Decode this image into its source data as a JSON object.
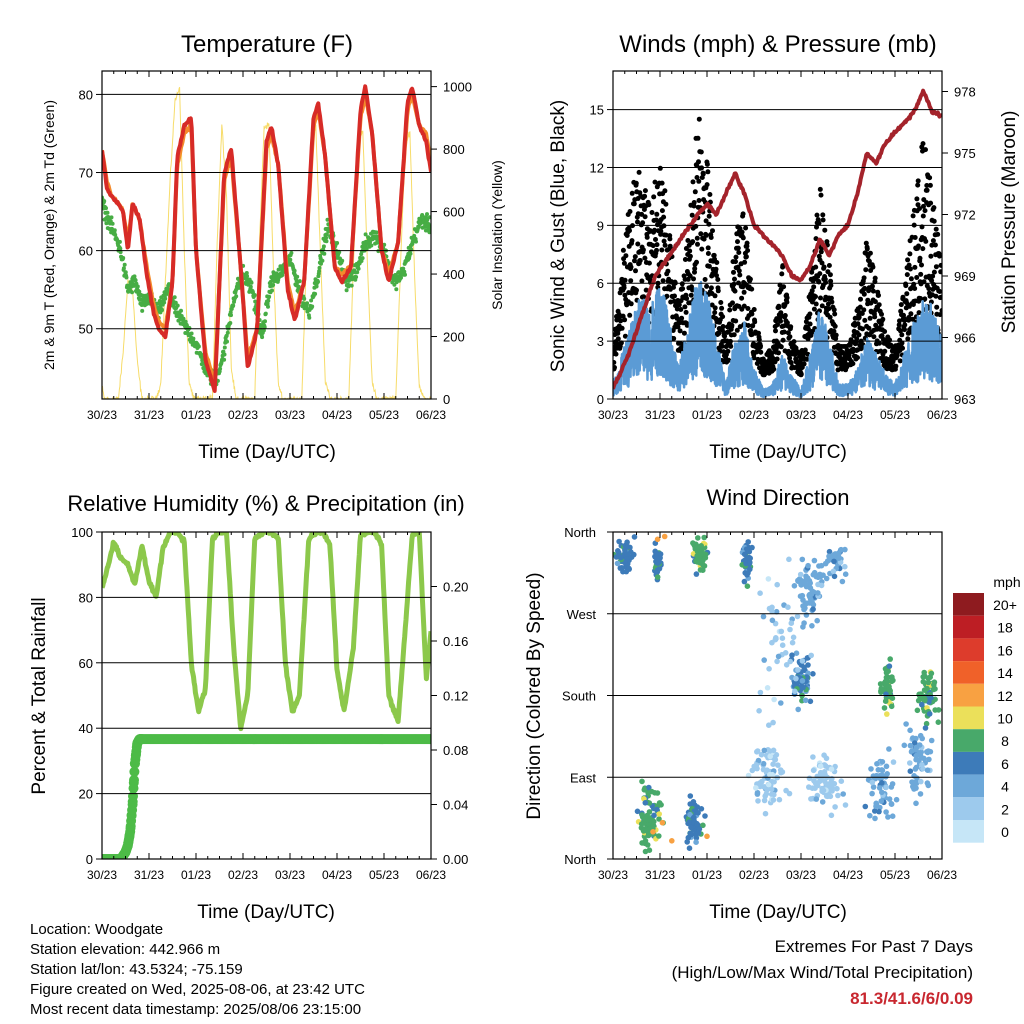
{
  "x_ticks": [
    "30/23",
    "31/23",
    "01/23",
    "02/23",
    "03/23",
    "04/23",
    "05/23",
    "06/23"
  ],
  "colors": {
    "temp2m": "#d72b27",
    "temp9m": "#f48a2c",
    "dewpoint": "#47ad44",
    "solar": "#f7dc6a",
    "wind": "#5b9bd5",
    "gust": "#000000",
    "pressure": "#a4232b",
    "rh": "#8cc84b",
    "precip": "#4dbb47",
    "extremes": "#c8272f"
  },
  "wind_speed_legend": {
    "title": "mph",
    "labels": [
      "20+",
      "18",
      "16",
      "14",
      "12",
      "10",
      "8",
      "6",
      "4",
      "2",
      "0"
    ],
    "colors": [
      "#8e1b1f",
      "#bd1e24",
      "#dd3c2c",
      "#f06129",
      "#f8a142",
      "#ebe05a",
      "#48a96a",
      "#3d7bb9",
      "#6da8d9",
      "#9dcaed",
      "#c6e6f7"
    ]
  },
  "chart_data": [
    {
      "type": "line",
      "title": "Temperature (F)",
      "xlabel": "Time (Day/UTC)",
      "ylabel": "2m & 9m T (Red, Orange) & 2m Td (Green)",
      "y2label": "Solar Insolation (Yellow)",
      "x_range": [
        0,
        7
      ],
      "ylim": [
        41,
        83
      ],
      "y_ticks": [
        50,
        60,
        70,
        80
      ],
      "y2lim": [
        0,
        1050
      ],
      "y2_ticks": [
        0,
        200,
        400,
        600,
        800,
        1000
      ],
      "series": [
        {
          "key": "temp2m",
          "x": [
            0,
            0.1,
            0.2,
            0.35,
            0.45,
            0.55,
            0.65,
            0.8,
            0.95,
            1.1,
            1.2,
            1.35,
            1.5,
            1.6,
            1.75,
            1.9,
            2.0,
            2.2,
            2.4,
            2.5,
            2.6,
            2.75,
            2.95,
            3.1,
            3.3,
            3.5,
            3.6,
            3.75,
            3.95,
            4.1,
            4.3,
            4.5,
            4.6,
            4.75,
            4.95,
            5.1,
            5.3,
            5.5,
            5.6,
            5.75,
            5.95,
            6.1,
            6.3,
            6.5,
            6.6,
            6.75,
            6.9,
            7.0
          ],
          "y": [
            73,
            68,
            67,
            66,
            65,
            60,
            66,
            64,
            57,
            52,
            50,
            49,
            56,
            72,
            76,
            77,
            60,
            46,
            42,
            56,
            70,
            73,
            58,
            45,
            50,
            74,
            76,
            71,
            55,
            51,
            56,
            77,
            79,
            72,
            58,
            56,
            58,
            78,
            81,
            75,
            60,
            56,
            61,
            79,
            81,
            76,
            74,
            70
          ]
        },
        {
          "key": "temp9m",
          "x": [
            0,
            0.1,
            0.2,
            0.35,
            0.45,
            0.55,
            0.65,
            0.8,
            0.95,
            1.1,
            1.2,
            1.35,
            1.5,
            1.6,
            1.75,
            1.9,
            2.0,
            2.2,
            2.4,
            2.5,
            2.6,
            2.75,
            2.95,
            3.1,
            3.3,
            3.5,
            3.6,
            3.75,
            3.95,
            4.1,
            4.3,
            4.5,
            4.6,
            4.75,
            4.95,
            5.1,
            5.3,
            5.5,
            5.6,
            5.75,
            5.95,
            6.1,
            6.3,
            6.5,
            6.6,
            6.75,
            6.9,
            7.0
          ],
          "y": [
            73,
            69,
            67,
            66,
            65,
            61,
            66,
            64,
            58,
            53,
            51,
            50,
            56,
            71,
            75,
            76,
            60,
            47,
            43,
            56,
            69,
            72,
            58,
            46,
            50,
            73,
            75,
            71,
            56,
            52,
            56,
            76,
            78,
            72,
            58,
            57,
            58,
            77,
            80,
            75,
            60,
            57,
            61,
            78,
            80,
            76,
            75,
            71
          ]
        },
        {
          "key": "dewpoint",
          "x": [
            0,
            0.2,
            0.4,
            0.55,
            0.7,
            0.85,
            1.0,
            1.2,
            1.4,
            1.6,
            1.8,
            2.0,
            2.2,
            2.4,
            2.6,
            2.8,
            3.0,
            3.2,
            3.4,
            3.6,
            3.8,
            4.0,
            4.2,
            4.4,
            4.6,
            4.8,
            5.0,
            5.2,
            5.4,
            5.6,
            5.8,
            6.0,
            6.2,
            6.4,
            6.6,
            6.8,
            7.0
          ],
          "y": [
            66,
            63,
            60,
            55,
            56,
            53,
            54,
            52,
            55,
            52,
            50,
            48,
            45,
            43,
            47,
            54,
            57,
            55,
            49,
            56,
            57,
            59,
            55,
            52,
            57,
            63,
            60,
            56,
            57,
            61,
            62,
            60,
            56,
            57,
            61,
            64,
            63
          ]
        },
        {
          "key": "solar",
          "axis": "y2",
          "x": [
            0,
            0.05,
            0.15,
            0.25,
            0.35,
            0.45,
            0.55,
            0.65,
            0.75,
            0.85,
            0.95,
            1.05,
            1.15,
            1.25,
            1.35,
            1.45,
            1.55,
            1.65,
            1.75,
            1.85,
            1.95,
            2.05,
            2.15,
            2.25,
            2.35,
            2.45,
            2.55,
            2.65,
            2.75,
            2.85,
            2.95,
            3.05,
            3.15,
            3.25,
            3.35,
            3.45,
            3.55,
            3.65,
            3.75,
            3.85,
            3.95,
            4.05,
            4.15,
            4.25,
            4.35,
            4.45,
            4.55,
            4.65,
            4.75,
            4.85,
            4.95,
            5.05,
            5.15,
            5.25,
            5.35,
            5.45,
            5.55,
            5.65,
            5.75,
            5.85,
            5.95,
            6.05,
            6.15,
            6.25,
            6.35,
            6.45,
            6.55,
            6.65,
            6.75,
            6.85,
            6.95,
            7.0
          ],
          "y": [
            40,
            0,
            0,
            0,
            0,
            150,
            380,
            350,
            120,
            0,
            0,
            0,
            0,
            50,
            380,
            700,
            950,
            1000,
            480,
            60,
            0,
            0,
            0,
            0,
            0,
            500,
            880,
            650,
            100,
            0,
            0,
            0,
            0,
            0,
            500,
            870,
            880,
            400,
            50,
            0,
            0,
            0,
            0,
            0,
            450,
            850,
            870,
            450,
            60,
            0,
            0,
            0,
            0,
            0,
            430,
            840,
            860,
            420,
            50,
            0,
            0,
            0,
            0,
            0,
            420,
            820,
            850,
            400,
            40,
            0,
            0,
            0
          ]
        }
      ]
    },
    {
      "type": "line",
      "title": "Winds (mph) & Pressure (mb)",
      "xlabel": "Time (Day/UTC)",
      "ylabel": "Sonic Wind & Gust (Blue, Black)",
      "y2label": "Station Pressure (Maroon)",
      "x_range": [
        0,
        7
      ],
      "ylim": [
        0,
        17
      ],
      "y_ticks": [
        0,
        3,
        6,
        9,
        12,
        15
      ],
      "y2lim": [
        963,
        979
      ],
      "y2_ticks": [
        963,
        966,
        969,
        972,
        975,
        978
      ],
      "series": [
        {
          "key": "wind",
          "x": [
            0,
            0.2,
            0.4,
            0.6,
            0.8,
            1.0,
            1.2,
            1.4,
            1.6,
            1.8,
            2.0,
            2.2,
            2.4,
            2.6,
            2.8,
            3.0,
            3.2,
            3.4,
            3.6,
            3.8,
            4.0,
            4.2,
            4.4,
            4.6,
            4.8,
            5.0,
            5.2,
            5.4,
            5.6,
            5.8,
            6.0,
            6.2,
            6.4,
            6.6,
            6.8,
            7.0
          ],
          "y": [
            0.5,
            1.5,
            2.5,
            3.5,
            3.0,
            4.0,
            2.5,
            1.0,
            2.5,
            4.0,
            3.5,
            2.0,
            0.5,
            2.0,
            2.5,
            1.0,
            0.3,
            0.5,
            1.5,
            0.8,
            0.3,
            1.5,
            3.0,
            2.0,
            0.5,
            0.5,
            1.0,
            2.0,
            1.5,
            0.8,
            0.5,
            1.5,
            2.5,
            3.5,
            3.0,
            2.0
          ]
        },
        {
          "key": "gust",
          "x": [
            0,
            0.2,
            0.4,
            0.6,
            0.8,
            1.0,
            1.2,
            1.4,
            1.6,
            1.8,
            2.0,
            2.2,
            2.4,
            2.6,
            2.8,
            3.0,
            3.2,
            3.4,
            3.6,
            3.8,
            4.0,
            4.2,
            4.4,
            4.6,
            4.8,
            5.0,
            5.2,
            5.4,
            5.6,
            5.8,
            6.0,
            6.2,
            6.4,
            6.6,
            6.8,
            7.0
          ],
          "y": [
            1.5,
            5,
            8,
            9,
            7,
            10,
            6,
            3,
            6,
            11,
            9,
            5,
            1.5,
            6,
            7,
            3,
            1,
            1.5,
            5,
            2,
            1,
            4,
            8,
            5,
            1.5,
            1.5,
            3,
            6,
            4,
            2,
            1.5,
            4,
            7,
            10,
            8,
            5
          ]
        },
        {
          "key": "pressure",
          "axis": "y2",
          "x": [
            0,
            0.3,
            0.6,
            0.9,
            1.2,
            1.5,
            1.8,
            2.0,
            2.2,
            2.4,
            2.6,
            2.8,
            3.0,
            3.2,
            3.4,
            3.6,
            3.8,
            4.0,
            4.2,
            4.4,
            4.6,
            4.8,
            5.0,
            5.2,
            5.4,
            5.6,
            5.8,
            6.0,
            6.2,
            6.4,
            6.6,
            6.8,
            7.0
          ],
          "y": [
            963.5,
            965,
            967,
            969,
            970,
            971,
            972,
            972.5,
            972,
            973,
            974,
            973,
            971.5,
            971,
            970.5,
            970,
            969,
            968.8,
            969.5,
            970.8,
            970,
            971,
            971.5,
            973,
            975,
            974.5,
            975.5,
            976,
            976.5,
            977,
            978,
            977,
            976.8
          ]
        }
      ]
    },
    {
      "type": "line",
      "title": "Relative Humidity (%) & Precipitation (in)",
      "xlabel": "Time (Day/UTC)",
      "ylabel": "Percent & Total Rainfall",
      "x_range": [
        0,
        7
      ],
      "ylim": [
        0,
        100
      ],
      "y_ticks": [
        0,
        20,
        40,
        60,
        80,
        100
      ],
      "y2lim": [
        0,
        0.24
      ],
      "y2_ticks": [
        0.0,
        0.04,
        0.08,
        0.12,
        0.16,
        0.2
      ],
      "series": [
        {
          "key": "rh",
          "x": [
            0,
            0.1,
            0.25,
            0.4,
            0.55,
            0.7,
            0.85,
            1.0,
            1.15,
            1.3,
            1.45,
            1.6,
            1.75,
            1.9,
            2.05,
            2.2,
            2.35,
            2.5,
            2.65,
            2.8,
            2.95,
            3.1,
            3.25,
            3.45,
            3.6,
            3.75,
            3.9,
            4.05,
            4.2,
            4.4,
            4.55,
            4.7,
            4.85,
            5.0,
            5.15,
            5.35,
            5.5,
            5.65,
            5.8,
            5.95,
            6.1,
            6.3,
            6.45,
            6.6,
            6.75,
            6.9,
            7.0
          ],
          "y": [
            83,
            88,
            97,
            92,
            90,
            84,
            96,
            85,
            80,
            95,
            100,
            100,
            97,
            60,
            45,
            52,
            98,
            100,
            100,
            65,
            40,
            50,
            98,
            100,
            100,
            98,
            60,
            45,
            50,
            98,
            100,
            100,
            96,
            58,
            45,
            65,
            99,
            100,
            100,
            96,
            50,
            42,
            70,
            99,
            100,
            55,
            70
          ]
        },
        {
          "key": "precip",
          "axis": "y2",
          "x": [
            0,
            0.4,
            0.5,
            0.55,
            0.6,
            0.65,
            0.7,
            0.75,
            0.8,
            1.0,
            2.0,
            3.0,
            4.0,
            5.0,
            6.0,
            7.0
          ],
          "y": [
            0,
            0,
            0.005,
            0.01,
            0.02,
            0.04,
            0.07,
            0.085,
            0.088,
            0.088,
            0.088,
            0.088,
            0.088,
            0.088,
            0.088,
            0.088
          ]
        }
      ]
    },
    {
      "type": "scatter",
      "title": "Wind Direction",
      "xlabel": "Time (Day/UTC)",
      "ylabel": "Direction (Colored By Speed)",
      "x_range": [
        0,
        7
      ],
      "ylim": [
        0,
        360
      ],
      "y_tick_labels": [
        "North",
        "East",
        "South",
        "West",
        "North"
      ],
      "clusters": [
        {
          "x": 0.25,
          "y": 335,
          "spread_x": 0.25,
          "spread_y": 25,
          "n": 55,
          "speed": 3
        },
        {
          "x": 0.95,
          "y": 330,
          "spread_x": 0.12,
          "spread_y": 25,
          "n": 30,
          "speed": 3
        },
        {
          "x": 1.85,
          "y": 335,
          "spread_x": 0.2,
          "spread_y": 25,
          "n": 60,
          "speed": 4
        },
        {
          "x": 2.85,
          "y": 330,
          "spread_x": 0.15,
          "spread_y": 35,
          "n": 45,
          "speed": 3
        },
        {
          "x": 4.2,
          "y": 300,
          "spread_x": 0.45,
          "spread_y": 55,
          "n": 70,
          "speed": 2
        },
        {
          "x": 4.75,
          "y": 330,
          "spread_x": 0.3,
          "spread_y": 30,
          "n": 35,
          "speed": 2
        },
        {
          "x": 4.0,
          "y": 200,
          "spread_x": 0.35,
          "spread_y": 45,
          "n": 60,
          "speed": 3
        },
        {
          "x": 5.85,
          "y": 190,
          "spread_x": 0.2,
          "spread_y": 40,
          "n": 55,
          "speed": 4
        },
        {
          "x": 6.7,
          "y": 180,
          "spread_x": 0.3,
          "spread_y": 50,
          "n": 60,
          "speed": 4
        },
        {
          "x": 0.8,
          "y": 45,
          "spread_x": 0.35,
          "spread_y": 45,
          "n": 80,
          "speed": 4
        },
        {
          "x": 1.7,
          "y": 40,
          "spread_x": 0.3,
          "spread_y": 40,
          "n": 60,
          "speed": 3
        },
        {
          "x": 3.3,
          "y": 95,
          "spread_x": 0.5,
          "spread_y": 50,
          "n": 80,
          "speed": 1
        },
        {
          "x": 4.5,
          "y": 85,
          "spread_x": 0.5,
          "spread_y": 45,
          "n": 70,
          "speed": 1
        },
        {
          "x": 5.7,
          "y": 80,
          "spread_x": 0.45,
          "spread_y": 50,
          "n": 60,
          "speed": 2
        },
        {
          "x": 6.5,
          "y": 110,
          "spread_x": 0.4,
          "spread_y": 60,
          "n": 60,
          "speed": 2
        },
        {
          "x": 3.6,
          "y": 240,
          "spread_x": 0.8,
          "spread_y": 120,
          "n": 50,
          "speed": 1
        }
      ]
    }
  ],
  "info": [
    "Location: Woodgate",
    "Station elevation: 442.966 m",
    "Station lat/lon: 43.5324; -75.159",
    "Figure created on Wed, 2025-08-06, at 23:42 UTC",
    "Most recent data timestamp: 2025/08/06 23:15:00"
  ],
  "extremes": {
    "title": "Extremes For Past 7 Days",
    "subtitle": "(High/Low/Max Wind/Total Precipitation)",
    "values": "81.3/41.6/6/0.09"
  }
}
